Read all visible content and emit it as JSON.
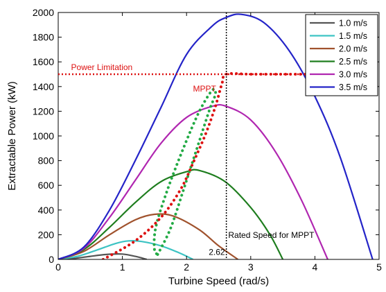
{
  "chart_data": {
    "type": "line",
    "xlabel": "Turbine Speed (rad/s)",
    "ylabel": "Extractable Power (kW)",
    "xlim": [
      0,
      5
    ],
    "ylim": [
      0,
      2000
    ],
    "xticks": [
      0,
      1,
      2,
      3,
      4,
      5
    ],
    "yticks": [
      0,
      200,
      400,
      600,
      800,
      1000,
      1200,
      1400,
      1600,
      1800,
      2000
    ],
    "grid": false,
    "legend_position": "top-right",
    "series": [
      {
        "name": "1.0 m/s",
        "color": "#555555",
        "x": [
          0,
          0.25,
          0.5,
          0.75,
          1.0,
          1.2,
          1.38
        ],
        "y": [
          0,
          8,
          25,
          40,
          43,
          25,
          0
        ]
      },
      {
        "name": "1.5 m/s",
        "color": "#3cc3c3",
        "x": [
          0,
          0.3,
          0.6,
          0.9,
          1.1,
          1.3,
          1.6,
          1.9,
          2.1
        ],
        "y": [
          0,
          25,
          75,
          130,
          150,
          145,
          110,
          50,
          0
        ]
      },
      {
        "name": "2.0 m/s",
        "color": "#a0522d",
        "x": [
          0,
          0.4,
          0.8,
          1.2,
          1.5,
          1.8,
          2.2,
          2.5,
          2.8
        ],
        "y": [
          0,
          65,
          200,
          320,
          365,
          350,
          240,
          110,
          0
        ]
      },
      {
        "name": "2.5 m/s",
        "color": "#1e7d1e",
        "x": [
          0,
          0.4,
          0.8,
          1.2,
          1.6,
          2.0,
          2.2,
          2.6,
          3.0,
          3.3,
          3.5
        ],
        "y": [
          0,
          80,
          260,
          460,
          630,
          710,
          720,
          630,
          420,
          200,
          0
        ]
      },
      {
        "name": "3.0 m/s",
        "color": "#b026b0",
        "x": [
          0,
          0.4,
          0.8,
          1.2,
          1.6,
          2.0,
          2.4,
          2.62,
          3.0,
          3.4,
          3.8,
          4.2
        ],
        "y": [
          0,
          90,
          340,
          640,
          940,
          1150,
          1240,
          1240,
          1130,
          860,
          470,
          0
        ]
      },
      {
        "name": "3.5 m/s",
        "color": "#2424c8",
        "x": [
          0,
          0.4,
          0.8,
          1.2,
          1.6,
          2.0,
          2.4,
          2.62,
          2.85,
          3.2,
          3.6,
          4.0,
          4.4,
          4.9
        ],
        "y": [
          0,
          100,
          400,
          800,
          1230,
          1660,
          1890,
          1960,
          1985,
          1920,
          1690,
          1320,
          820,
          0
        ]
      }
    ],
    "annotations": [
      {
        "type": "hline",
        "y": 1500,
        "x_range": [
          0,
          4.0
        ],
        "color": "#dd1111",
        "style": "dotted",
        "label": "Power Limitation",
        "label_x": 0.2
      },
      {
        "type": "vline",
        "x": 2.62,
        "color": "#000000",
        "style": "dotted",
        "label": "2.62",
        "label_y": 60
      },
      {
        "type": "text",
        "text": "Rated Speed for MPPT",
        "x": 2.65,
        "y": 175,
        "color": "#000000"
      },
      {
        "type": "text",
        "text": "MPPT",
        "x": 2.1,
        "y": 1360,
        "color": "#dd1111"
      }
    ],
    "mppt_curve": {
      "color": "#dd1111",
      "x": [
        0.7,
        1.2,
        1.6,
        1.9,
        2.1,
        2.3,
        2.45,
        2.55,
        2.62,
        3.0,
        3.6,
        4.0
      ],
      "y": [
        0,
        150,
        340,
        560,
        780,
        1020,
        1240,
        1420,
        1500,
        1500,
        1500,
        1500
      ]
    },
    "hysteresis_loop": {
      "color": "#22aa44",
      "x": [
        1.55,
        1.75,
        1.95,
        2.15,
        2.35,
        2.45,
        2.4,
        2.2,
        1.95,
        1.7,
        1.52,
        1.5,
        1.55
      ],
      "y": [
        40,
        250,
        560,
        880,
        1200,
        1340,
        1370,
        1200,
        900,
        560,
        260,
        80,
        40
      ]
    }
  }
}
